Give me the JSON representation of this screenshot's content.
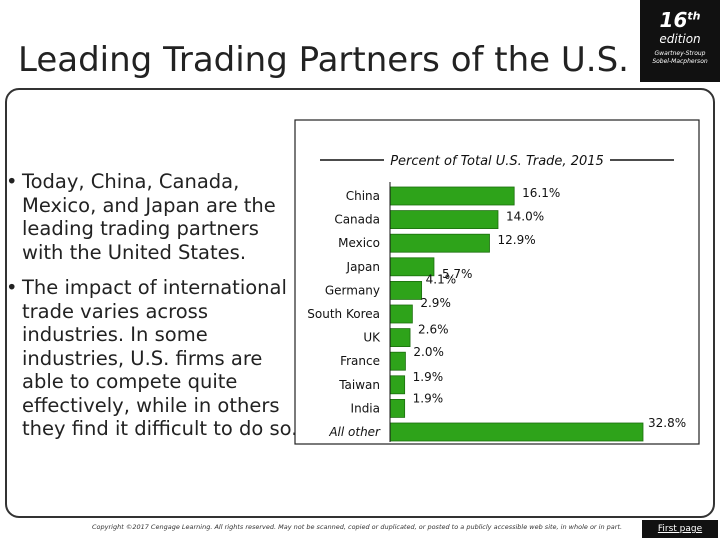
{
  "page": {
    "title": "Leading Trading Partners of the U.S."
  },
  "badge": {
    "edition_number": "16",
    "edition_suffix": "th",
    "edition_word": "edition",
    "authors_line1": "Gwartney-Stroup",
    "authors_line2": "Sobel-Macpherson"
  },
  "bullets": [
    "Today, China, Canada, Mexico, and Japan are the leading trading partners with the United States.",
    "The impact of international trade varies across industries. In some industries, U.S. firms are able to compete quite effectively, while in others they find it difficult to do so."
  ],
  "colors": {
    "bar_fill": "#2ea31a",
    "bar_stroke": "#1b6e0d",
    "frame": "#333333",
    "badge_bg": "#111111"
  },
  "chart_data": {
    "type": "bar",
    "orientation": "horizontal",
    "title": "Percent of Total U.S. Trade, 2015",
    "categories": [
      "China",
      "Canada",
      "Mexico",
      "Japan",
      "Germany",
      "South Korea",
      "UK",
      "France",
      "Taiwan",
      "India",
      "All other"
    ],
    "values": [
      16.1,
      14.0,
      12.9,
      5.7,
      4.1,
      2.9,
      2.6,
      2.0,
      1.9,
      1.9,
      32.8
    ],
    "value_labels": [
      "16.1%",
      "14.0%",
      "12.9%",
      "5.7%",
      "4.1%",
      "2.9%",
      "2.6%",
      "2.0%",
      "1.9%",
      "1.9%",
      "32.8%"
    ],
    "xlim": [
      0,
      33
    ],
    "grid": false,
    "legend": "none"
  },
  "footer": {
    "copyright": "Copyright ©2017 Cengage Learning. All rights reserved. May not be scanned, copied or duplicated, or posted to a publicly accessible web site, in whole or in part.",
    "first_page_label": "First page"
  }
}
